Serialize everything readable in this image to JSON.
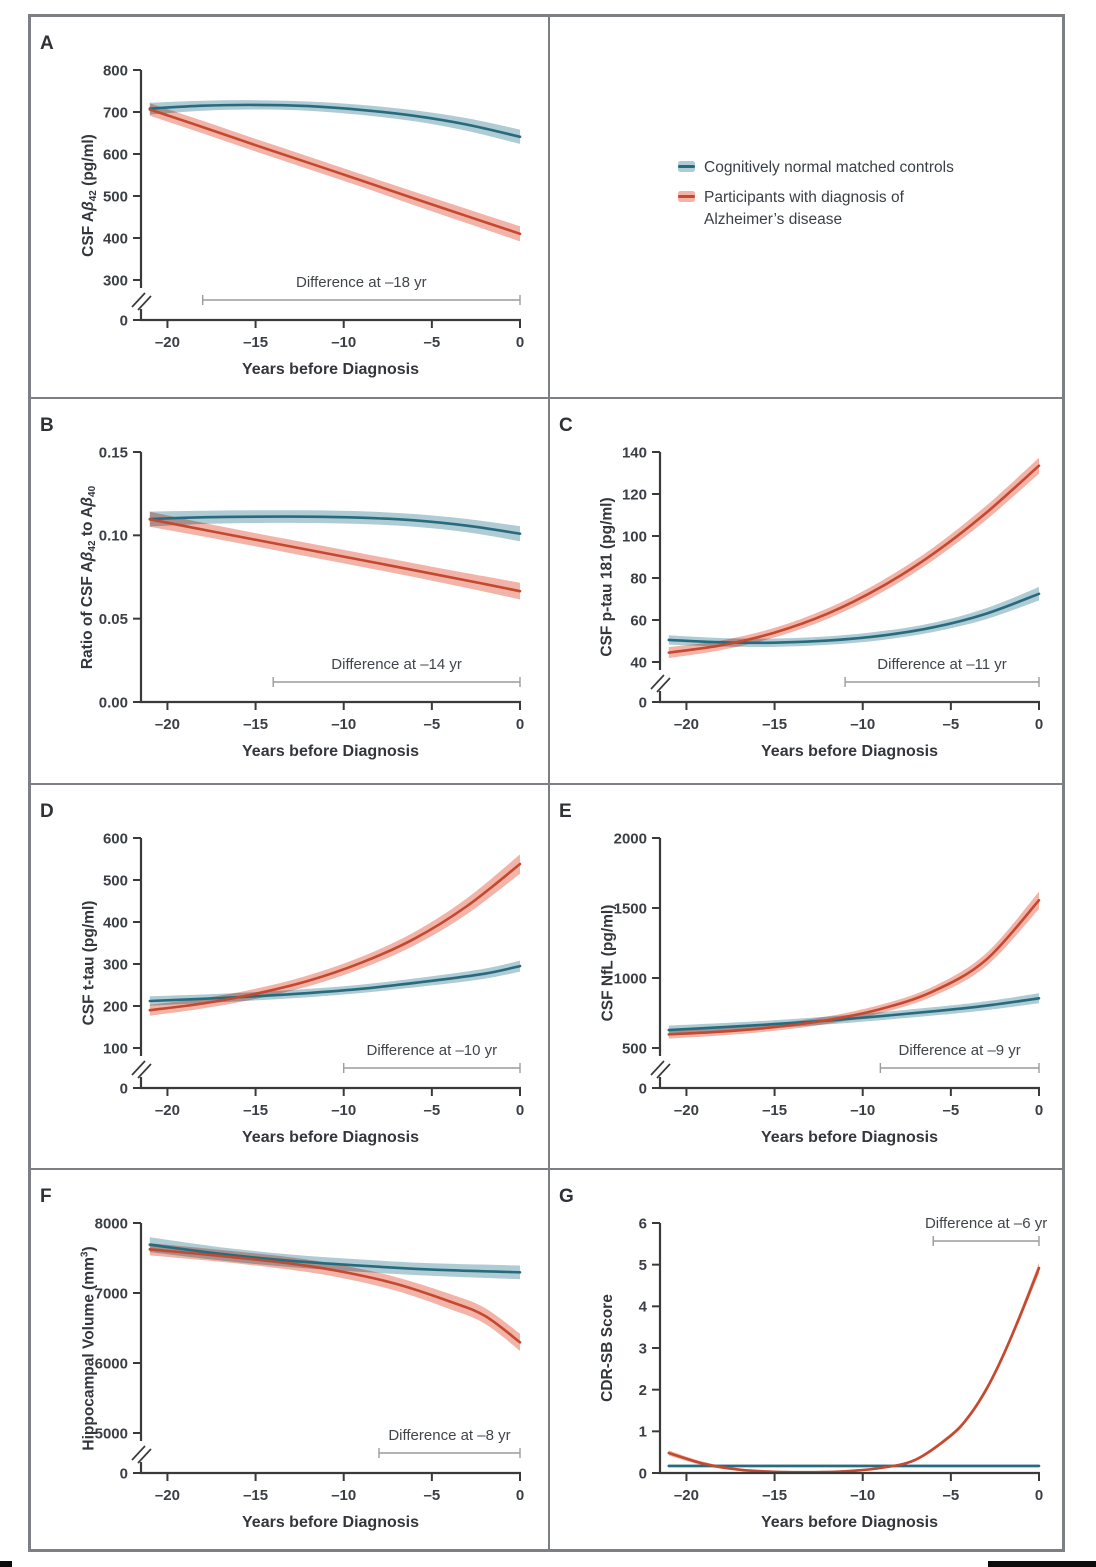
{
  "chart_data": {
    "type": "line",
    "description": "Biomarker trajectories in the 21 years before clinical diagnosis of Alzheimer's disease, AD participants vs cognitively normal matched controls; lines with shaded 95% confidence bands.",
    "x_axis": {
      "label": "Years before Diagnosis",
      "range": [
        -21.5,
        0
      ],
      "ticks": [
        -20,
        -15,
        -10,
        -5,
        0
      ],
      "tick_labels": [
        "–20",
        "–15",
        "–10",
        "–5",
        "0"
      ]
    },
    "legend": {
      "entries": [
        {
          "key": "controls",
          "label_lines": [
            "Cognitively normal matched controls"
          ]
        },
        {
          "key": "ad",
          "label_lines": [
            "Participants with diagnosis of",
            "Alzheimer’s disease"
          ]
        }
      ]
    },
    "colors": {
      "controls_line": "#276B7E",
      "controls_band": "#AFCBD4",
      "ad_line": "#C4492F",
      "ad_band": "#F2B4A8",
      "axis": "#3A3A3A",
      "text": "#3A3E45",
      "bracket": "#9C9C9C",
      "frame": "#7C8084"
    },
    "panels": [
      {
        "panel": "A",
        "grid": [
          0,
          0
        ],
        "ylabel_parts": [
          {
            "t": "CSF A"
          },
          {
            "t": "β",
            "italic": true
          },
          {
            "t": "42",
            "sub": true
          },
          {
            "t": " (pg/ml)"
          }
        ],
        "axis_break": true,
        "yticks": [
          {
            "v": 0,
            "label": "0"
          },
          {
            "v": 300,
            "label": "300"
          },
          {
            "v": 400,
            "label": "400"
          },
          {
            "v": 500,
            "label": "500"
          },
          {
            "v": 600,
            "label": "600"
          },
          {
            "v": 700,
            "label": "700"
          },
          {
            "v": 800,
            "label": "800"
          }
        ],
        "difference": {
          "label": "Difference at –18 yr",
          "year": -18,
          "position": "bottom"
        },
        "series": [
          {
            "key": "controls",
            "points": [
              [
                -21,
                708,
                14
              ],
              [
                -18,
                715,
                12
              ],
              [
                -15,
                717,
                11
              ],
              [
                -12,
                714,
                11
              ],
              [
                -9,
                705,
                12
              ],
              [
                -6,
                691,
                13
              ],
              [
                -3,
                670,
                15
              ],
              [
                0,
                641,
                17
              ]
            ]
          },
          {
            "key": "ad",
            "points": [
              [
                -21,
                706,
                15
              ],
              [
                -18,
                664,
                15
              ],
              [
                -15,
                621,
                15
              ],
              [
                -12,
                579,
                15
              ],
              [
                -9,
                537,
                15
              ],
              [
                -6,
                494,
                16
              ],
              [
                -3,
                452,
                17
              ],
              [
                0,
                410,
                18
              ]
            ]
          }
        ]
      },
      {
        "panel": "B",
        "grid": [
          1,
          0
        ],
        "ylabel_parts": [
          {
            "t": "Ratio of CSF A"
          },
          {
            "t": "β",
            "italic": true
          },
          {
            "t": "42",
            "sub": true
          },
          {
            "t": " to A"
          },
          {
            "t": "β",
            "italic": true
          },
          {
            "t": "40",
            "sub": true
          }
        ],
        "axis_break": false,
        "yticks": [
          {
            "v": 0,
            "label": "0.00"
          },
          {
            "v": 0.05,
            "label": "0.05"
          },
          {
            "v": 0.1,
            "label": "0.10"
          },
          {
            "v": 0.15,
            "label": "0.15"
          }
        ],
        "difference": {
          "label": "Difference at –14 yr",
          "year": -14,
          "position": "bottom"
        },
        "series": [
          {
            "key": "controls",
            "points": [
              [
                -21,
                0.1098,
                0.0045
              ],
              [
                -18,
                0.1108,
                0.004
              ],
              [
                -15,
                0.1112,
                0.0038
              ],
              [
                -12,
                0.1112,
                0.0038
              ],
              [
                -9,
                0.1106,
                0.0038
              ],
              [
                -6,
                0.109,
                0.0038
              ],
              [
                -3,
                0.1058,
                0.004
              ],
              [
                0,
                0.101,
                0.0045
              ]
            ]
          },
          {
            "key": "ad",
            "points": [
              [
                -21,
                0.1096,
                0.0045
              ],
              [
                -17,
                0.1014,
                0.004
              ],
              [
                -13,
                0.0933,
                0.004
              ],
              [
                -9,
                0.0852,
                0.004
              ],
              [
                -5,
                0.077,
                0.0042
              ],
              [
                -2,
                0.0708,
                0.0046
              ],
              [
                0,
                0.0665,
                0.005
              ]
            ]
          }
        ]
      },
      {
        "panel": "C",
        "grid": [
          1,
          1
        ],
        "ylabel_parts": [
          {
            "t": "CSF p-tau 181 (pg/ml)"
          }
        ],
        "axis_break": true,
        "yticks": [
          {
            "v": 0,
            "label": "0"
          },
          {
            "v": 40,
            "label": "40"
          },
          {
            "v": 60,
            "label": "60"
          },
          {
            "v": 80,
            "label": "80"
          },
          {
            "v": 100,
            "label": "100"
          },
          {
            "v": 120,
            "label": "120"
          },
          {
            "v": 140,
            "label": "140"
          }
        ],
        "difference": {
          "label": "Difference at –11 yr",
          "year": -11,
          "position": "bottom"
        },
        "series": [
          {
            "key": "controls",
            "points": [
              [
                -21,
                50.5,
                2.2
              ],
              [
                -18,
                49.4,
                2
              ],
              [
                -15,
                49.2,
                2
              ],
              [
                -12,
                50.2,
                2
              ],
              [
                -9,
                52.5,
                2.1
              ],
              [
                -6,
                56.5,
                2.2
              ],
              [
                -3,
                63,
                2.6
              ],
              [
                0,
                72.5,
                3.2
              ]
            ]
          },
          {
            "key": "ad",
            "points": [
              [
                -21,
                44.5,
                2.6
              ],
              [
                -18,
                48,
                2.3
              ],
              [
                -15,
                54,
                2.3
              ],
              [
                -12,
                63,
                2.5
              ],
              [
                -9,
                75.5,
                2.8
              ],
              [
                -6,
                91.5,
                3
              ],
              [
                -3,
                111,
                3.4
              ],
              [
                0,
                133.5,
                3.8
              ]
            ]
          }
        ]
      },
      {
        "panel": "D",
        "grid": [
          2,
          0
        ],
        "ylabel_parts": [
          {
            "t": "CSF t-tau (pg/ml)"
          }
        ],
        "axis_break": true,
        "yticks": [
          {
            "v": 0,
            "label": "0"
          },
          {
            "v": 100,
            "label": "100"
          },
          {
            "v": 200,
            "label": "200"
          },
          {
            "v": 300,
            "label": "300"
          },
          {
            "v": 400,
            "label": "400"
          },
          {
            "v": 500,
            "label": "500"
          },
          {
            "v": 600,
            "label": "600"
          }
        ],
        "difference": {
          "label": "Difference at –10 yr",
          "year": -10,
          "position": "bottom"
        },
        "series": [
          {
            "key": "controls",
            "points": [
              [
                -21,
                212,
                11
              ],
              [
                -17,
                219,
                10
              ],
              [
                -13,
                228,
                10
              ],
              [
                -9,
                241,
                10
              ],
              [
                -5,
                260,
                11
              ],
              [
                -2,
                277,
                12
              ],
              [
                0,
                295,
                13
              ]
            ]
          },
          {
            "key": "ad",
            "points": [
              [
                -21,
                190,
                13
              ],
              [
                -18,
                206,
                12
              ],
              [
                -15,
                229,
                12
              ],
              [
                -12,
                260,
                13
              ],
              [
                -9,
                303,
                14
              ],
              [
                -6,
                360,
                16
              ],
              [
                -3,
                438,
                19
              ],
              [
                0,
                538,
                23
              ]
            ]
          }
        ]
      },
      {
        "panel": "E",
        "grid": [
          2,
          1
        ],
        "ylabel_parts": [
          {
            "t": "CSF NfL (pg/ml)"
          }
        ],
        "axis_break": true,
        "yticks": [
          {
            "v": 0,
            "label": "0"
          },
          {
            "v": 500,
            "label": "500"
          },
          {
            "v": 1000,
            "label": "1000"
          },
          {
            "v": 1500,
            "label": "1500"
          },
          {
            "v": 2000,
            "label": "2000"
          }
        ],
        "difference": {
          "label": "Difference at –9 yr",
          "year": -9,
          "position": "bottom"
        },
        "series": [
          {
            "key": "controls",
            "points": [
              [
                -21,
                628,
                32
              ],
              [
                -16,
                663,
                28
              ],
              [
                -11,
                706,
                28
              ],
              [
                -6,
                762,
                30
              ],
              [
                -3,
                802,
                32
              ],
              [
                0,
                855,
                36
              ]
            ]
          },
          {
            "key": "ad",
            "points": [
              [
                -21,
                597,
                30
              ],
              [
                -18,
                617,
                27
              ],
              [
                -15,
                649,
                26
              ],
              [
                -12,
                699,
                27
              ],
              [
                -9,
                778,
                30
              ],
              [
                -6,
                905,
                34
              ],
              [
                -3,
                1130,
                46
              ],
              [
                0,
                1555,
                62
              ]
            ]
          }
        ]
      },
      {
        "panel": "F",
        "grid": [
          3,
          0
        ],
        "ylabel_parts": [
          {
            "t": "Hippocampal Volume (mm"
          },
          {
            "t": "3",
            "sup": true
          },
          {
            "t": ")"
          }
        ],
        "axis_break": true,
        "yticks": [
          {
            "v": 0,
            "label": "0"
          },
          {
            "v": 5000,
            "label": "5000"
          },
          {
            "v": 6000,
            "label": "6000"
          },
          {
            "v": 7000,
            "label": "7000"
          },
          {
            "v": 8000,
            "label": "8000"
          }
        ],
        "difference": {
          "label": "Difference at –8 yr",
          "year": -8,
          "position": "bottom"
        },
        "series": [
          {
            "key": "controls",
            "points": [
              [
                -21,
                7690,
                105
              ],
              [
                -17,
                7560,
                95
              ],
              [
                -13,
                7460,
                90
              ],
              [
                -9,
                7390,
                88
              ],
              [
                -5,
                7335,
                90
              ],
              [
                0,
                7295,
                98
              ]
            ]
          },
          {
            "key": "ad",
            "points": [
              [
                -21,
                7625,
                88
              ],
              [
                -17,
                7530,
                85
              ],
              [
                -13,
                7420,
                88
              ],
              [
                -10,
                7300,
                92
              ],
              [
                -7,
                7128,
                98
              ],
              [
                -4,
                6880,
                108
              ],
              [
                -2,
                6675,
                112
              ],
              [
                0,
                6295,
                122
              ]
            ]
          }
        ]
      },
      {
        "panel": "G",
        "grid": [
          3,
          1
        ],
        "ylabel_parts": [
          {
            "t": "CDR-SB Score"
          }
        ],
        "axis_break": false,
        "yticks": [
          {
            "v": 0,
            "label": "0"
          },
          {
            "v": 1,
            "label": "1"
          },
          {
            "v": 2,
            "label": "2"
          },
          {
            "v": 3,
            "label": "3"
          },
          {
            "v": 4,
            "label": "4"
          },
          {
            "v": 5,
            "label": "5"
          },
          {
            "v": 6,
            "label": "6"
          }
        ],
        "difference": {
          "label": "Difference at –6 yr",
          "year": -6,
          "position": "top"
        },
        "series": [
          {
            "key": "controls",
            "points": [
              [
                -21,
                0.17,
                0.035
              ],
              [
                -10,
                0.17,
                0.035
              ],
              [
                0,
                0.17,
                0.035
              ]
            ]
          },
          {
            "key": "ad",
            "points": [
              [
                -21,
                0.48,
                0.06
              ],
              [
                -19,
                0.22,
                0.045
              ],
              [
                -17,
                0.08,
                0.03
              ],
              [
                -15,
                0.03,
                0.02
              ],
              [
                -13,
                0.02,
                0.02
              ],
              [
                -11,
                0.04,
                0.02
              ],
              [
                -9,
                0.12,
                0.025
              ],
              [
                -7,
                0.32,
                0.035
              ],
              [
                -5,
                0.9,
                0.05
              ],
              [
                -4,
                1.35,
                0.06
              ],
              [
                -3,
                2.0,
                0.07
              ],
              [
                -2,
                2.85,
                0.08
              ],
              [
                -1,
                3.85,
                0.1
              ],
              [
                0,
                4.92,
                0.13
              ]
            ]
          }
        ]
      }
    ]
  }
}
